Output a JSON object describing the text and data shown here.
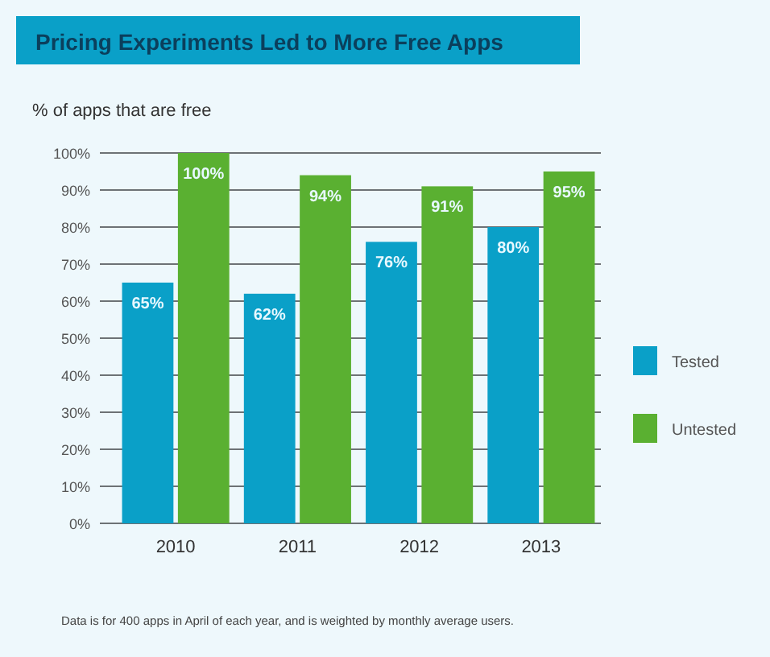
{
  "chart_data": {
    "type": "bar",
    "title": "Pricing Experiments Led to More Free Apps",
    "ylabel": "% of apps that are free",
    "categories": [
      "2010",
      "2011",
      "2012",
      "2013"
    ],
    "series": [
      {
        "name": "Tested",
        "color": "#0aa0c8",
        "values": [
          65,
          62,
          76,
          80
        ],
        "value_labels": [
          "65%",
          "62%",
          "76%",
          "80%"
        ]
      },
      {
        "name": "Untested",
        "color": "#5ab031",
        "values": [
          100,
          94,
          91,
          95
        ],
        "value_labels": [
          "100%",
          "94%",
          "91%",
          "95%"
        ]
      }
    ],
    "ylim": [
      0,
      100
    ],
    "yticks": [
      {
        "value": 0,
        "label": "0%"
      },
      {
        "value": 10,
        "label": "10%"
      },
      {
        "value": 20,
        "label": "20%"
      },
      {
        "value": 30,
        "label": "30%"
      },
      {
        "value": 40,
        "label": "40%"
      },
      {
        "value": 50,
        "label": "50%"
      },
      {
        "value": 60,
        "label": "60%"
      },
      {
        "value": 70,
        "label": "70%"
      },
      {
        "value": 80,
        "label": "80%"
      },
      {
        "value": 90,
        "label": "90%"
      },
      {
        "value": 100,
        "label": "100%"
      }
    ],
    "grid": "y",
    "legend": "right",
    "annotations": [
      "Data is for 400 apps in April of each year, and is weighted by monthly average users."
    ]
  }
}
